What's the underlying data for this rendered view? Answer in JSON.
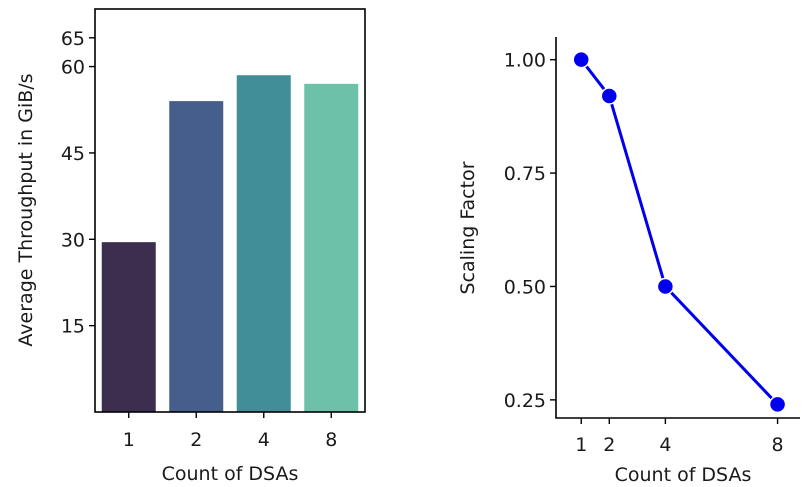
{
  "chart_data": [
    {
      "type": "bar",
      "title": "",
      "xlabel": "Count of DSAs",
      "ylabel": "Average Throughput in GiB/s",
      "categories": [
        "1",
        "2",
        "4",
        "8"
      ],
      "values": [
        29.5,
        54,
        58.5,
        57
      ],
      "ylim": [
        0,
        70
      ],
      "yticks": [
        15,
        30,
        45,
        60,
        65
      ],
      "colors": [
        "#3b2e4f",
        "#455e8c",
        "#418e99",
        "#6cc1a8"
      ],
      "grid": false
    },
    {
      "type": "line",
      "title": "",
      "xlabel": "Count of DSAs",
      "ylabel": "Scaling Factor",
      "x": [
        1,
        2,
        4,
        8
      ],
      "y": [
        1.0,
        0.92,
        0.5,
        0.24
      ],
      "xticks": [
        "1",
        "2",
        "4",
        "8"
      ],
      "yticks": [
        "0.25",
        "0.50",
        "0.75",
        "1.00"
      ],
      "xlim": [
        0.1,
        8.8
      ],
      "ylim": [
        0.21,
        1.05
      ],
      "color": "#0000ee",
      "marker": "circle",
      "grid": false
    }
  ]
}
